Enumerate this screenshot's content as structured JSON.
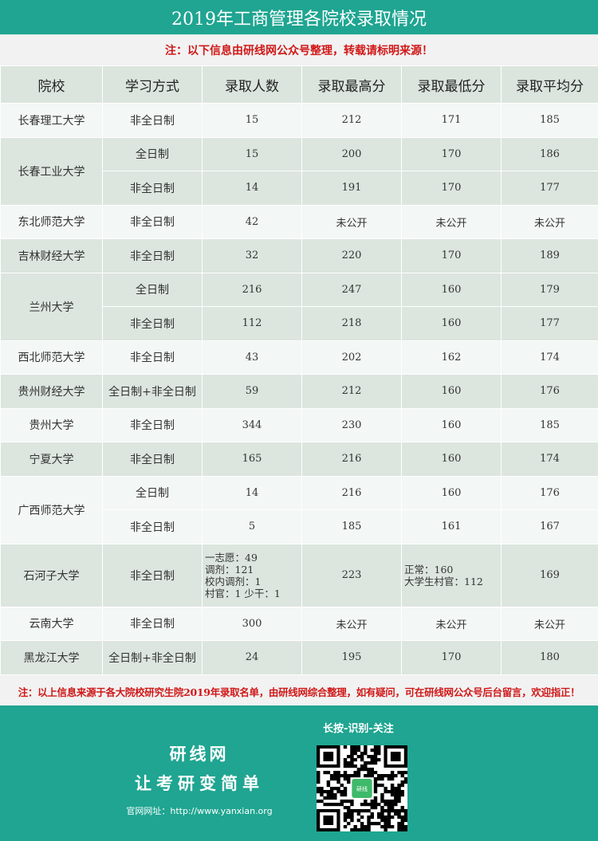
{
  "title": "2019年工商管理各院校录取情况",
  "note_top": "注：以下信息由研线网公众号整理，转载请标明来源！",
  "headers": [
    "院校",
    "学习方式",
    "录取人数",
    "录取最高分",
    "录取最低分",
    "录取平均分"
  ],
  "schools": [
    {
      "name": "长春理工大学",
      "shaded": false,
      "rows": [
        [
          "非全日制",
          "15",
          "212",
          "171",
          "185"
        ]
      ]
    },
    {
      "name": "长春工业大学",
      "shaded": true,
      "rows": [
        [
          "全日制",
          "15",
          "200",
          "170",
          "186"
        ],
        [
          "非全日制",
          "14",
          "191",
          "170",
          "177"
        ]
      ]
    },
    {
      "name": "东北师范大学",
      "shaded": false,
      "rows": [
        [
          "非全日制",
          "42",
          "未公开",
          "未公开",
          "未公开"
        ]
      ]
    },
    {
      "name": "吉林财经大学",
      "shaded": true,
      "rows": [
        [
          "非全日制",
          "32",
          "220",
          "170",
          "189"
        ]
      ]
    },
    {
      "name": "兰州大学",
      "shaded": true,
      "rows": [
        [
          "全日制",
          "216",
          "247",
          "160",
          "179"
        ],
        [
          "非全日制",
          "112",
          "218",
          "160",
          "177"
        ]
      ]
    },
    {
      "name": "西北师范大学",
      "shaded": false,
      "rows": [
        [
          "非全日制",
          "43",
          "202",
          "162",
          "174"
        ]
      ]
    },
    {
      "name": "贵州财经大学",
      "shaded": true,
      "rows": [
        [
          "全日制+非全日制",
          "59",
          "212",
          "160",
          "176"
        ]
      ]
    },
    {
      "name": "贵州大学",
      "shaded": false,
      "rows": [
        [
          "非全日制",
          "344",
          "230",
          "160",
          "185"
        ]
      ]
    },
    {
      "name": "宁夏大学",
      "shaded": true,
      "rows": [
        [
          "非全日制",
          "165",
          "216",
          "160",
          "174"
        ]
      ]
    },
    {
      "name": "广西师范大学",
      "shaded": false,
      "rows": [
        [
          "全日制",
          "14",
          "216",
          "160",
          "176"
        ],
        [
          "非全日制",
          "5",
          "185",
          "161",
          "167"
        ]
      ]
    },
    {
      "name": "石河子大学",
      "shaded": true,
      "rows": [
        [
          "非全日制",
          "一志愿：49\n调剂：121\n校内调剂：1\n村官：1 少干：1",
          "223",
          "正常：160\n大学生村官：112",
          "169"
        ]
      ]
    },
    {
      "name": "云南大学",
      "shaded": false,
      "rows": [
        [
          "非全日制",
          "300",
          "未公开",
          "未公开",
          "未公开"
        ]
      ]
    },
    {
      "name": "黑龙江大学",
      "shaded": true,
      "rows": [
        [
          "全日制+非全日制",
          "24",
          "195",
          "170",
          "180"
        ]
      ]
    }
  ],
  "note_bottom": "注：以上信息来源于各大院校研究生院2019年录取名单，由研线网综合整理，如有疑问，可在研线网公众号后台留言，欢迎指正！",
  "footer": {
    "brand": "研线网",
    "slogan": "让考研变简单",
    "site": "官网网址：http://www.yanxian.org",
    "scan_hint": "长按-识别-关注",
    "qr_label": "研线"
  },
  "colors": {
    "teal": "#1fa591",
    "red": "#d01818",
    "row_shaded": "#dce5de",
    "row_light": "#f3f7f5"
  }
}
